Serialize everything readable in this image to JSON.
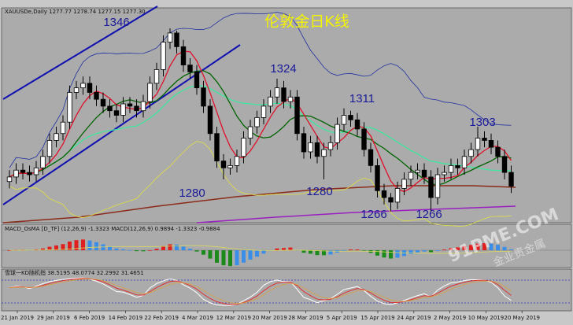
{
  "chart_data": {
    "type": "candlestick",
    "title": "伦敦金日K线",
    "header": "XAUUSDe,Daily  1277.77 1278.74 1277.15 1277.30",
    "macd_label": "MACD_OsMA [D_TF] (12,26,9) -1.3323 MACD(12,26,9) 0.9894 -1.3323 -0.9884",
    "kd_label": "雪球一KD随机指 38.5195 48.0774 32.2992 31.4651",
    "watermark": "91PME.COM",
    "watermark_sub": "金业贵金属",
    "annotations": [
      "1346",
      "1324",
      "1311",
      "1303",
      "1280",
      "1280",
      "1266",
      "1266"
    ],
    "xlabels": [
      "21 Jan 2019",
      "29 Jan 2019",
      "6 Feb 2019",
      "14 Feb 2019",
      "22 Feb 2019",
      "4 Mar 2019",
      "12 Mar 2019",
      "20 Mar 2019",
      "28 Mar 2019",
      "5 Apr 2019",
      "15 Apr 2019",
      "24 Apr 2019",
      "2 May 2019",
      "10 May 2019",
      "20 May 2019"
    ],
    "ylim": [
      1261,
      1355
    ],
    "open": [
      1279,
      1281,
      1284,
      1283,
      1282,
      1285,
      1290,
      1297,
      1300,
      1305,
      1318,
      1320,
      1322,
      1318,
      1315,
      1312,
      1310,
      1308,
      1313,
      1312,
      1310,
      1314,
      1322,
      1328,
      1340,
      1344,
      1338,
      1330,
      1327,
      1320,
      1312,
      1300,
      1288,
      1285,
      1286,
      1290,
      1298,
      1303,
      1307,
      1312,
      1316,
      1320,
      1314,
      1316,
      1300,
      1292,
      1296,
      1290,
      1293,
      1296,
      1304,
      1308,
      1306,
      1302,
      1293,
      1286,
      1275,
      1272,
      1270,
      1276,
      1280,
      1283,
      1284,
      1281,
      1272,
      1282,
      1283,
      1286,
      1285,
      1290,
      1293,
      1298,
      1297,
      1294,
      1290,
      1283
    ],
    "high": [
      1284,
      1287,
      1287,
      1286,
      1288,
      1293,
      1300,
      1303,
      1308,
      1321,
      1323,
      1325,
      1325,
      1321,
      1318,
      1315,
      1313,
      1316,
      1316,
      1315,
      1317,
      1325,
      1331,
      1343,
      1346,
      1345,
      1341,
      1333,
      1330,
      1323,
      1315,
      1303,
      1291,
      1289,
      1293,
      1301,
      1306,
      1310,
      1315,
      1319,
      1324,
      1323,
      1319,
      1319,
      1303,
      1299,
      1299,
      1296,
      1299,
      1307,
      1311,
      1310,
      1309,
      1305,
      1296,
      1289,
      1278,
      1274,
      1279,
      1283,
      1286,
      1287,
      1287,
      1284,
      1285,
      1286,
      1289,
      1289,
      1293,
      1296,
      1303,
      1301,
      1300,
      1297,
      1293,
      1286
    ],
    "low": [
      1276,
      1278,
      1280,
      1279,
      1279,
      1282,
      1287,
      1294,
      1297,
      1302,
      1315,
      1317,
      1315,
      1312,
      1309,
      1307,
      1305,
      1305,
      1309,
      1307,
      1307,
      1311,
      1319,
      1325,
      1337,
      1335,
      1327,
      1324,
      1317,
      1309,
      1297,
      1285,
      1280,
      1282,
      1283,
      1287,
      1295,
      1300,
      1304,
      1309,
      1313,
      1311,
      1311,
      1297,
      1289,
      1289,
      1287,
      1280,
      1290,
      1293,
      1301,
      1303,
      1299,
      1290,
      1283,
      1272,
      1269,
      1266,
      1267,
      1273,
      1277,
      1280,
      1278,
      1266,
      1269,
      1279,
      1280,
      1282,
      1282,
      1287,
      1290,
      1294,
      1291,
      1287,
      1280,
      1274
    ],
    "close": [
      1281,
      1284,
      1283,
      1282,
      1285,
      1290,
      1297,
      1300,
      1305,
      1318,
      1320,
      1322,
      1318,
      1315,
      1312,
      1310,
      1308,
      1313,
      1312,
      1310,
      1314,
      1322,
      1328,
      1340,
      1344,
      1338,
      1330,
      1327,
      1320,
      1312,
      1300,
      1288,
      1285,
      1286,
      1290,
      1298,
      1303,
      1307,
      1312,
      1316,
      1320,
      1314,
      1316,
      1300,
      1292,
      1296,
      1290,
      1293,
      1296,
      1304,
      1308,
      1306,
      1302,
      1293,
      1286,
      1275,
      1272,
      1270,
      1276,
      1280,
      1283,
      1284,
      1281,
      1272,
      1282,
      1283,
      1286,
      1285,
      1290,
      1293,
      1298,
      1297,
      1294,
      1290,
      1283,
      1277
    ]
  }
}
